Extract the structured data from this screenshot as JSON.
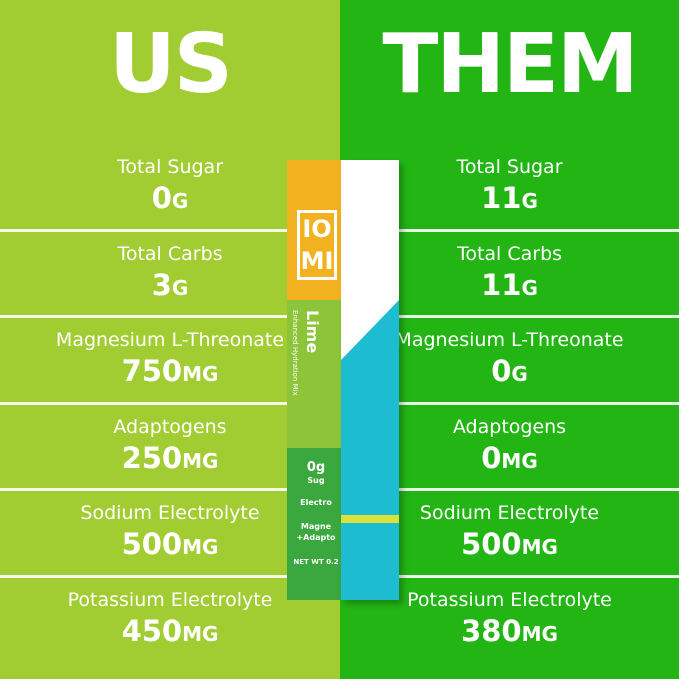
{
  "us": {
    "heading": "US",
    "rows": [
      {
        "label": "Total Sugar",
        "value": "0",
        "unit": "G"
      },
      {
        "label": "Total Carbs",
        "value": "3",
        "unit": "G"
      },
      {
        "label": "Magnesium L-Threonate",
        "value": "750",
        "unit": "MG"
      },
      {
        "label": "Adaptogens",
        "value": "250",
        "unit": "MG"
      },
      {
        "label": "Sodium Electrolyte",
        "value": "500",
        "unit": "MG"
      },
      {
        "label": "Potassium Electrolyte",
        "value": "450",
        "unit": "MG"
      }
    ]
  },
  "them": {
    "heading": "THEM",
    "rows": [
      {
        "label": "Total Sugar",
        "value": "11",
        "unit": "G"
      },
      {
        "label": "Total Carbs",
        "value": "11",
        "unit": "G"
      },
      {
        "label": "Magnesium L-Threonate",
        "value": "0",
        "unit": "G"
      },
      {
        "label": "Adaptogens",
        "value": "0",
        "unit": "MG"
      },
      {
        "label": "Sodium Electrolyte",
        "value": "500",
        "unit": "MG"
      },
      {
        "label": "Potassium Electrolyte",
        "value": "380",
        "unit": "MG"
      }
    ]
  },
  "packet": {
    "logo": "IO MI",
    "flavor": "Lime",
    "subtitle": "Enhanced Hydration Mix",
    "sugar": "0g",
    "sugar_label": "Sug",
    "electro": "Electro",
    "magne": "Magne",
    "adapto": "+Adapto",
    "netwt": "NET WT 0.2"
  },
  "colors": {
    "us_bg": "#a2cd32",
    "them_bg": "#22b514"
  }
}
